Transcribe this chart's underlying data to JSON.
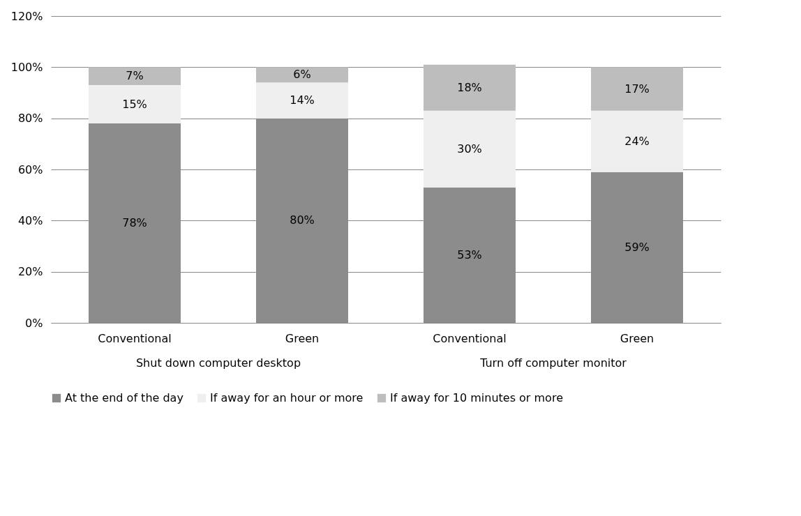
{
  "chart_data": {
    "type": "bar",
    "stacked": true,
    "categories": [
      "Conventional",
      "Green",
      "Conventional",
      "Green"
    ],
    "annotations": [
      "Shut down computer desktop",
      "Turn off computer monitor"
    ],
    "series": [
      {
        "name": "At the end of the day",
        "color": "#8c8c8c",
        "values": [
          78,
          80,
          53,
          59
        ],
        "value_labels": [
          "78%",
          "80%",
          "53%",
          "59%"
        ]
      },
      {
        "name": "If away for an hour or more",
        "color": "#efefef",
        "values": [
          15,
          14,
          30,
          24
        ],
        "value_labels": [
          "15%",
          "14%",
          "30%",
          "24%"
        ]
      },
      {
        "name": "If away for 10 minutes or more",
        "color": "#bdbdbd",
        "values": [
          7,
          6,
          18,
          17
        ],
        "value_labels": [
          "7%",
          "6%",
          "18%",
          "17%"
        ]
      }
    ],
    "ylim": [
      0,
      120
    ],
    "yticks": [
      {
        "value": 0,
        "label": "0%"
      },
      {
        "value": 20,
        "label": "20%"
      },
      {
        "value": 40,
        "label": "40%"
      },
      {
        "value": 60,
        "label": "60%"
      },
      {
        "value": 80,
        "label": "80%"
      },
      {
        "value": 100,
        "label": "100%"
      },
      {
        "value": 120,
        "label": "120%"
      }
    ],
    "grid": "y",
    "legend": "bottom"
  }
}
